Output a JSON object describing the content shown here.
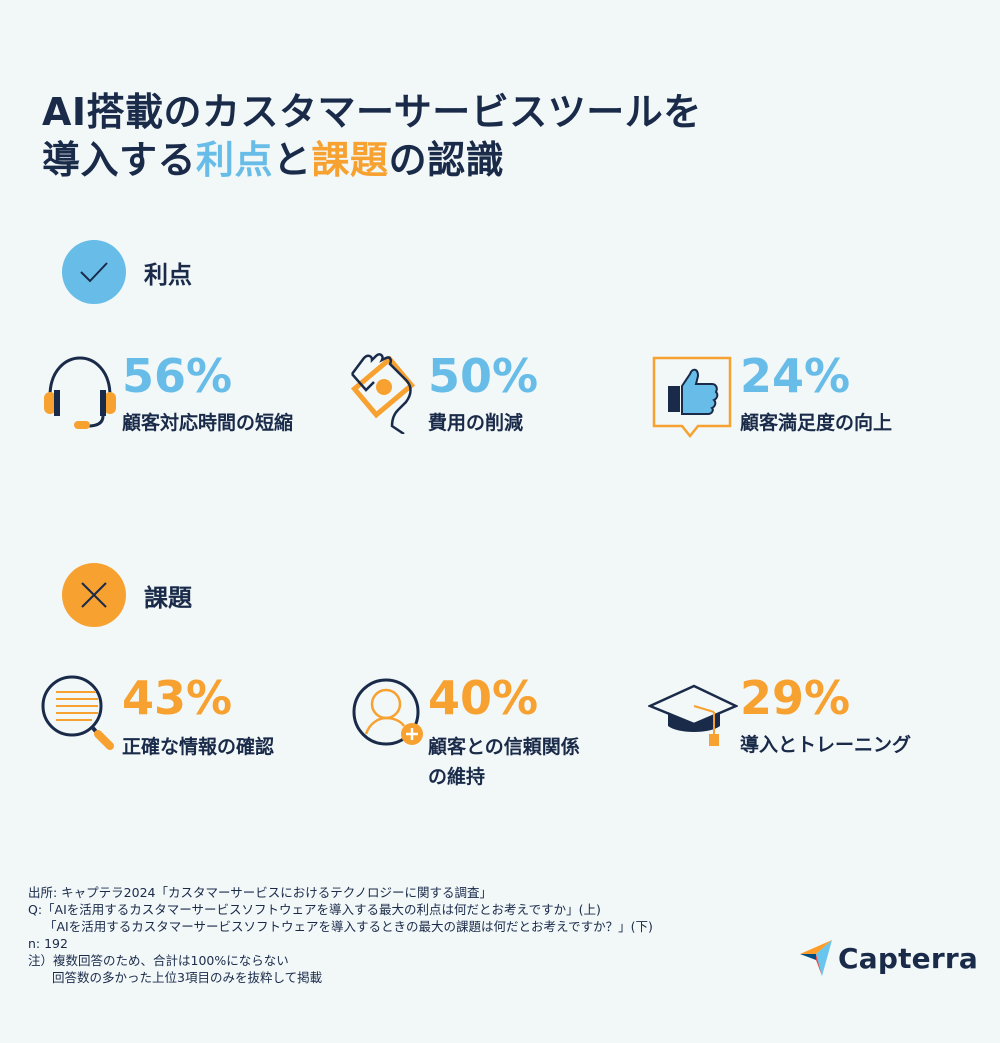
{
  "title": {
    "line1": "AI搭載のカスタマーサービスツールを",
    "line2_prefix": "導入する",
    "line2_benefit": "利点",
    "line2_mid": "と",
    "line2_challenge": "課題",
    "line2_suffix": "の認識"
  },
  "benefits": {
    "heading": "利点",
    "items": [
      {
        "percent": "56%",
        "label": "顧客対応時間の短縮",
        "icon": "headset-icon"
      },
      {
        "percent": "50%",
        "label": "費用の削減",
        "icon": "money-hand-icon"
      },
      {
        "percent": "24%",
        "label": "顧客満足度の向上",
        "icon": "thumbs-up-icon"
      }
    ]
  },
  "challenges": {
    "heading": "課題",
    "items": [
      {
        "percent": "43%",
        "label": "正確な情報の確認",
        "icon": "magnifier-document-icon"
      },
      {
        "percent": "40%",
        "label_line1": "顧客との信頼関係",
        "label_line2": "の維持",
        "icon": "user-add-icon"
      },
      {
        "percent": "29%",
        "label": "導入とトレーニング",
        "icon": "graduation-cap-icon"
      }
    ]
  },
  "footnote": {
    "source": "出所: キャプテラ2024「カスタマーサービスにおけるテクノロジーに関する調査」",
    "q1": "Q:「AIを活用するカスタマーサービスソフトウェアを導入する最大の利点は何だとお考えですか」(上)",
    "q2": "「AIを活用するカスタマーサービスソフトウェアを導入するときの最大の課題は何だとお考えですか？」(下)",
    "n": "n: 192",
    "note1": "注）複数回答のため、合計は100%にならない",
    "note2": "回答数の多かった上位3項目のみを抜粋して掲載"
  },
  "logo": {
    "text": "Capterra"
  },
  "colors": {
    "blue": "#67bde8",
    "orange": "#f7a130",
    "navy": "#1a2b4a",
    "background": "#f2f7f8"
  }
}
